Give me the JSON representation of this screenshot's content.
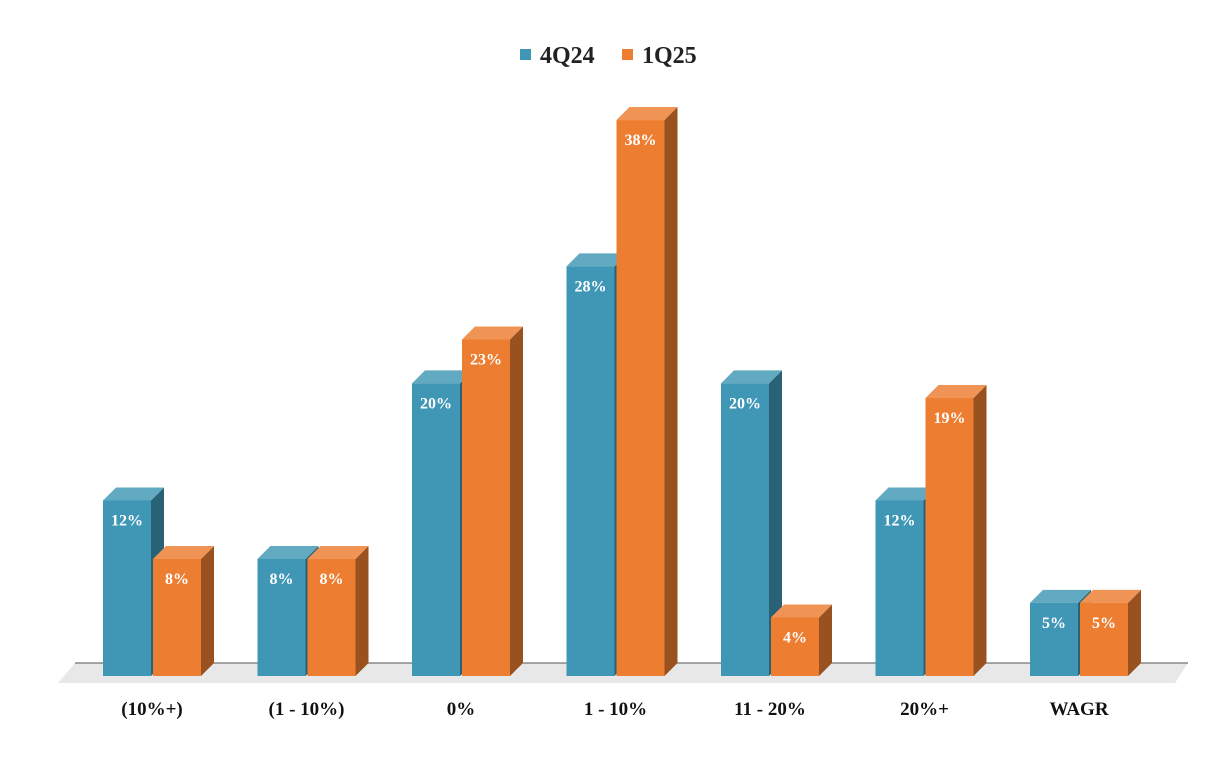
{
  "chart_data": {
    "type": "bar",
    "categories": [
      "(10%+)",
      "(1 - 10%)",
      "0%",
      "1 - 10%",
      "11 - 20%",
      "20%+",
      "WAGR"
    ],
    "series": [
      {
        "name": "4Q24",
        "values": [
          12,
          8,
          20,
          28,
          20,
          12,
          5
        ],
        "labels": [
          "12%",
          "8%",
          "20%",
          "28%",
          "20%",
          "12%",
          "5%"
        ],
        "color": "#3f97b5"
      },
      {
        "name": "1Q25",
        "values": [
          8,
          8,
          23,
          38,
          4,
          19,
          5
        ],
        "labels": [
          "8%",
          "8%",
          "23%",
          "38%",
          "4%",
          "19%",
          "5%"
        ],
        "color": "#ed7d31"
      }
    ],
    "ylim": [
      0,
      38
    ],
    "grid": false,
    "legend_position": "top-center",
    "style": "3d-clustered-column"
  }
}
